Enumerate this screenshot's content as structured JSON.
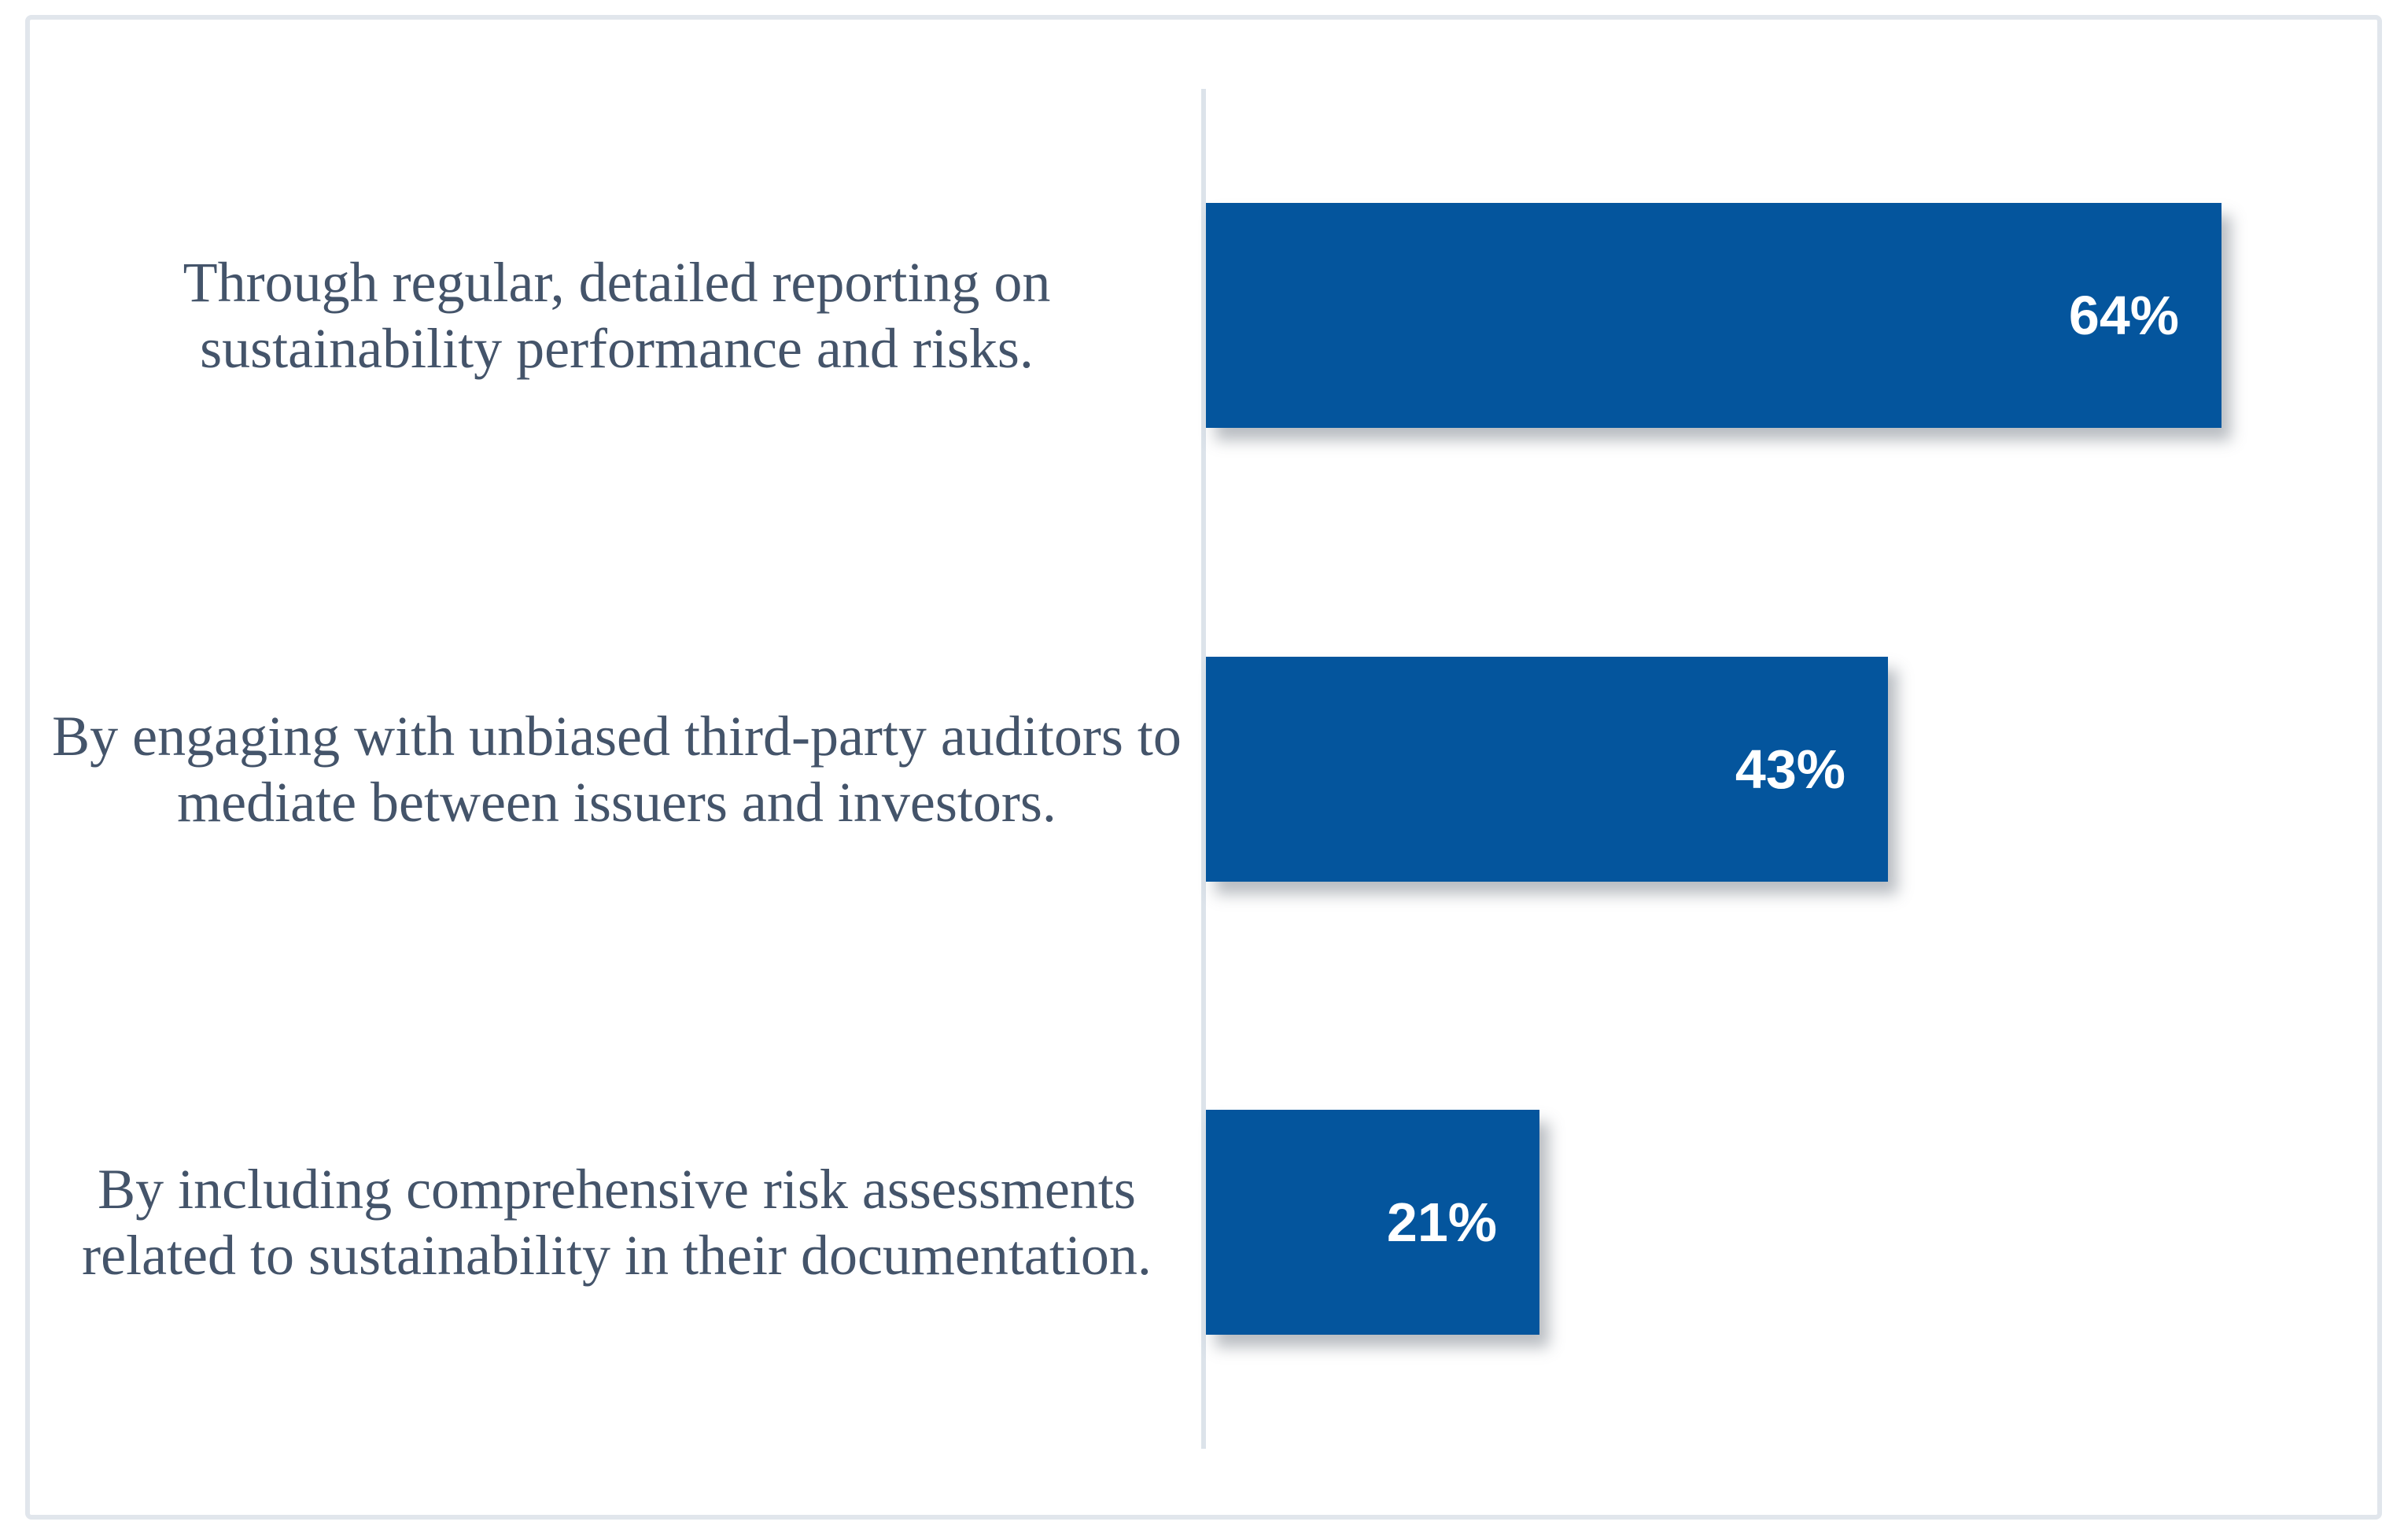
{
  "chart_data": {
    "type": "bar",
    "orientation": "horizontal",
    "title": "",
    "xlabel": "",
    "ylabel": "",
    "categories": [
      "Through regular, detailed reporting on sustainability performance and risks.",
      "By engaging with unbiased third-party auditors to mediate between issuers and investors.",
      "By including comprehensive risk assessments related to sustainability in their documentation."
    ],
    "values": [
      64,
      43,
      21
    ],
    "value_labels": [
      "64%",
      "43%",
      "21%"
    ],
    "value_unit": "%",
    "xlim": [
      0,
      75
    ],
    "grid": false,
    "legend": false,
    "value_label_position": "inside-end",
    "colors": {
      "bar_fill": "#04559D",
      "value_text": "#FFFFFF",
      "category_text": "#44546A",
      "axis_line": "#DCE3EA",
      "card_border": "#E1E6EC",
      "background": "#FFFFFF"
    }
  }
}
